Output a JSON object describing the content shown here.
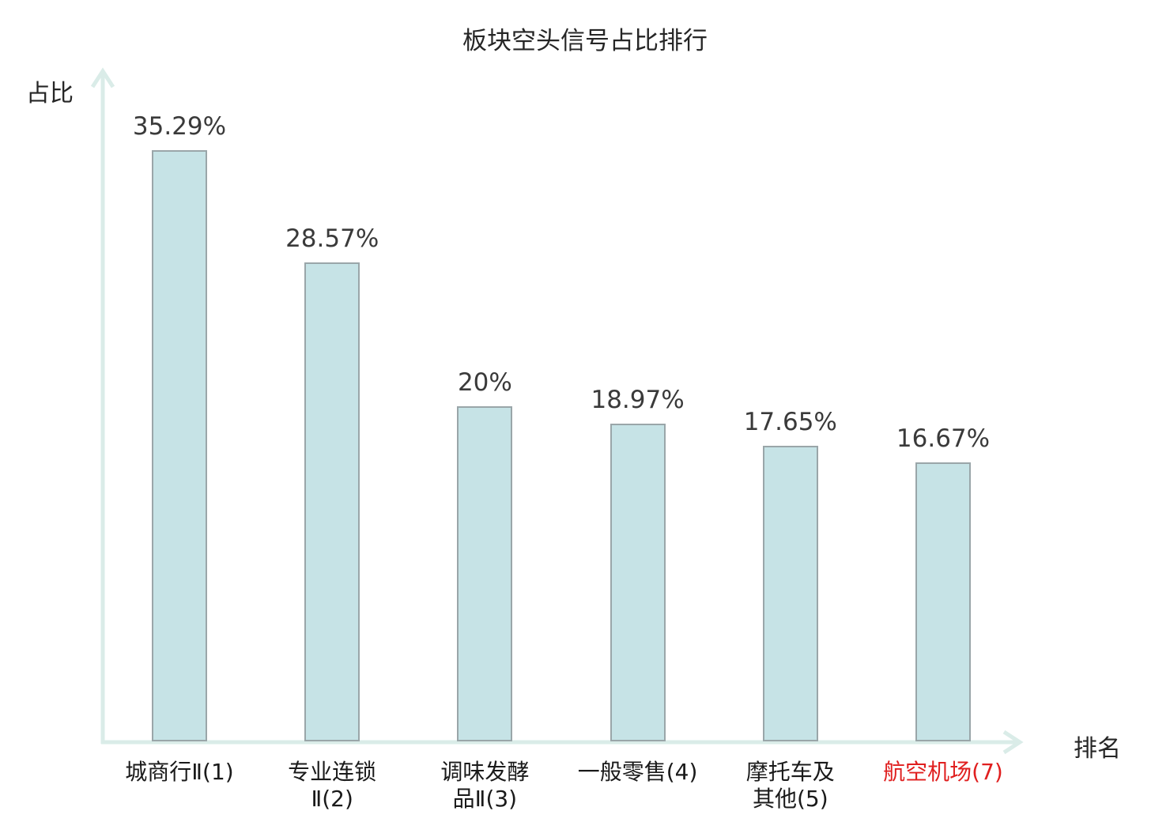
{
  "chart_data": {
    "type": "bar",
    "title": "板块空头信号占比排行",
    "ylabel": "占比",
    "xlabel": "排名",
    "categories": [
      "城商行Ⅱ(1)",
      "专业连锁Ⅱ(2)",
      "调味发酵品Ⅱ(3)",
      "一般零售(4)",
      "摩托车及其他(5)",
      "航空机场(7)"
    ],
    "category_lines": [
      [
        "城商行Ⅱ(1)"
      ],
      [
        "专业连锁",
        "Ⅱ(2)"
      ],
      [
        "调味发酵",
        "品Ⅱ(3)"
      ],
      [
        "一般零售(4)"
      ],
      [
        "摩托车及",
        "其他(5)"
      ],
      [
        "航空机场(7)"
      ]
    ],
    "values": [
      35.29,
      28.57,
      20,
      18.97,
      17.65,
      16.67
    ],
    "value_labels": [
      "35.29%",
      "28.57%",
      "20%",
      "18.97%",
      "17.65%",
      "16.67%"
    ],
    "highlight_index": 5,
    "ylim": [
      0,
      40
    ],
    "grid": false,
    "legend": null,
    "colors": {
      "bar_fill": "#c6e3e6",
      "bar_border": "#9aa6a9",
      "axis": "#daece8",
      "text": "#1a1a1a",
      "value_text": "#3a3a3a",
      "highlight_text": "#e01f1f"
    }
  }
}
